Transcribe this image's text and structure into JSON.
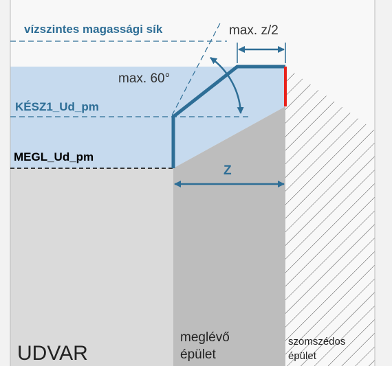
{
  "labels": {
    "horizontal_plane": "vízszintes magassági sík",
    "max_half_z": "max. z/2",
    "max_angle": "max. 60°",
    "kesz": "KÉSZ1_Ud_pm",
    "megl": "MEGL_Ud_pm",
    "z": "Z",
    "existing": [
      "meglévő",
      "épület"
    ],
    "neighbor": [
      "szomszédos",
      "épület"
    ],
    "yard": "UDVAR"
  }
}
